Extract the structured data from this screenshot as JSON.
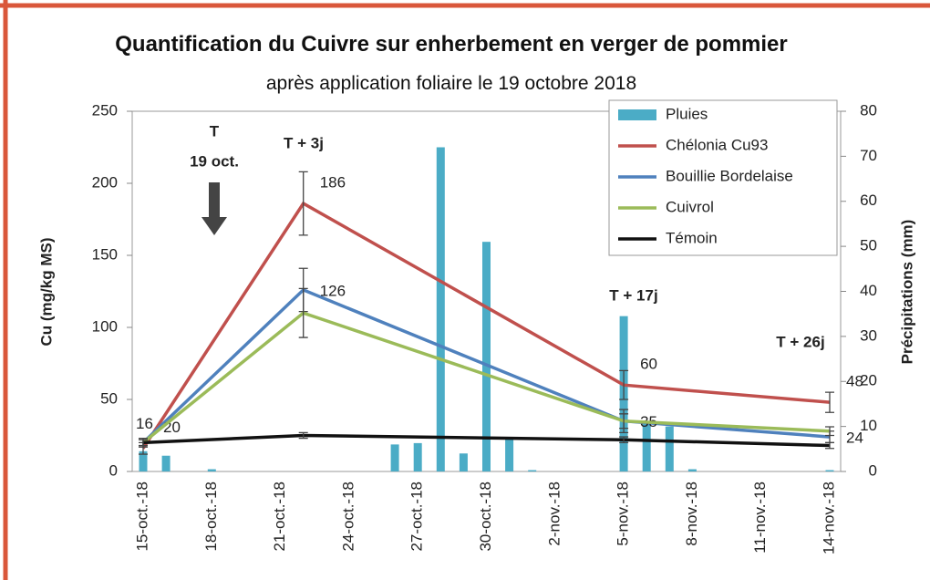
{
  "chart_data": {
    "type": "combo",
    "title": "Quantification du Cuivre  sur enherbement en verger de pommier",
    "subtitle": "après application foliaire le 19 octobre 2018",
    "y_label": "Cu (mg/kg MS)",
    "y2_label": "Précipitations (mm)",
    "categories": [
      "15-oct.-18",
      null,
      null,
      "18-oct.-18",
      null,
      null,
      "21-oct.-18",
      null,
      null,
      "24-oct.-18",
      null,
      null,
      "27-oct.-18",
      null,
      null,
      "30-oct.-18",
      null,
      null,
      "2-nov.-18",
      null,
      null,
      "5-nov.-18",
      null,
      null,
      "8-nov.-18",
      null,
      null,
      "11-nov.-18",
      null,
      null,
      "14-nov.-18"
    ],
    "ylim": [
      0,
      250
    ],
    "yticks": [
      0,
      50,
      100,
      150,
      200,
      250
    ],
    "y2lim": [
      0,
      80
    ],
    "y2ticks": [
      0,
      10,
      20,
      30,
      40,
      50,
      60,
      70,
      80
    ],
    "spanGaps": true,
    "series": [
      {
        "name": "Pluies",
        "type": "bar",
        "axis": "y2",
        "color": "#4bacc6",
        "values": [
          4.5,
          3.5,
          0,
          0.5,
          0,
          0,
          0,
          0,
          0,
          0,
          0,
          6,
          6.3,
          72,
          4,
          51,
          7.3,
          0.3,
          0,
          0,
          0,
          34.5,
          10.7,
          10,
          0.5,
          0,
          0,
          0,
          0,
          0,
          0.3
        ]
      },
      {
        "name": "Chélonia Cu93",
        "type": "line",
        "color": "#c0504d",
        "labels": true,
        "values": [
          16,
          null,
          null,
          null,
          null,
          null,
          null,
          186,
          null,
          null,
          null,
          null,
          null,
          null,
          null,
          null,
          null,
          null,
          null,
          null,
          null,
          60,
          null,
          null,
          null,
          null,
          null,
          null,
          null,
          null,
          48
        ],
        "errors": [
          4,
          null,
          null,
          null,
          null,
          null,
          null,
          22,
          null,
          null,
          null,
          null,
          null,
          null,
          null,
          null,
          null,
          null,
          null,
          null,
          null,
          10,
          null,
          null,
          null,
          null,
          null,
          null,
          null,
          null,
          7
        ]
      },
      {
        "name": "Bouillie Bordelaise",
        "type": "line",
        "color": "#4f81bd",
        "labels": true,
        "values": [
          20,
          null,
          null,
          null,
          null,
          null,
          null,
          126,
          null,
          null,
          null,
          null,
          null,
          null,
          null,
          null,
          null,
          null,
          null,
          null,
          null,
          35,
          null,
          null,
          null,
          null,
          null,
          null,
          null,
          null,
          24
        ],
        "errors": [
          3,
          null,
          null,
          null,
          null,
          null,
          null,
          15,
          null,
          null,
          null,
          null,
          null,
          null,
          null,
          null,
          null,
          null,
          null,
          null,
          null,
          8,
          null,
          null,
          null,
          null,
          null,
          null,
          null,
          null,
          4
        ]
      },
      {
        "name": "Cuivrol",
        "type": "line",
        "color": "#9bbb59",
        "labels": false,
        "values": [
          20,
          null,
          null,
          null,
          null,
          null,
          null,
          110,
          null,
          null,
          null,
          null,
          null,
          null,
          null,
          null,
          null,
          null,
          null,
          null,
          null,
          35,
          null,
          null,
          null,
          null,
          null,
          null,
          null,
          null,
          28
        ],
        "errors": [
          3,
          null,
          null,
          null,
          null,
          null,
          null,
          17,
          null,
          null,
          null,
          null,
          null,
          null,
          null,
          null,
          null,
          null,
          null,
          null,
          null,
          5,
          null,
          null,
          null,
          null,
          null,
          null,
          null,
          null,
          3
        ]
      },
      {
        "name": "Témoin",
        "type": "line",
        "color": "#111111",
        "labels": false,
        "values": [
          20,
          null,
          null,
          null,
          null,
          null,
          null,
          25,
          null,
          null,
          null,
          null,
          null,
          null,
          null,
          null,
          null,
          null,
          null,
          null,
          null,
          22,
          null,
          null,
          null,
          null,
          null,
          null,
          null,
          null,
          18
        ],
        "errors": [
          2,
          null,
          null,
          null,
          null,
          null,
          null,
          2,
          null,
          null,
          null,
          null,
          null,
          null,
          null,
          null,
          null,
          null,
          null,
          null,
          null,
          2,
          null,
          null,
          null,
          null,
          null,
          null,
          null,
          null,
          2
        ]
      }
    ],
    "annotations": [
      {
        "text": "T",
        "category": "19 oct."
      },
      {
        "text": "T + 3j"
      },
      {
        "text": "T + 17j"
      },
      {
        "text": "T + 26j"
      }
    ]
  }
}
